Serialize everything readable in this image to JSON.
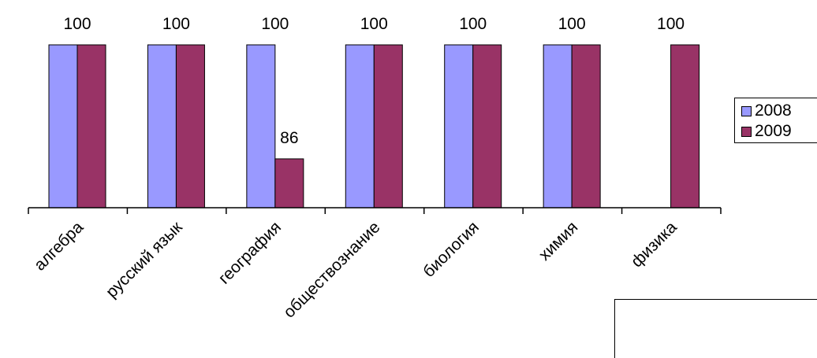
{
  "chart_data": {
    "type": "bar",
    "title": "",
    "xlabel": "",
    "ylabel": "",
    "categories": [
      "алгебра",
      "русский язык",
      "география",
      "обществознание",
      "биология",
      "химия",
      "физика"
    ],
    "series": [
      {
        "name": "2008",
        "color": "#9999ff",
        "values": [
          100,
          100,
          100,
          100,
          100,
          100,
          null
        ]
      },
      {
        "name": "2009",
        "color": "#993366",
        "values": [
          100,
          100,
          86,
          100,
          100,
          100,
          100
        ]
      }
    ],
    "ylim": [
      80,
      100
    ],
    "grid": false,
    "legend_position": "right",
    "data_labels": [
      {
        "category": 0,
        "text": "100"
      },
      {
        "category": 1,
        "text": "100"
      },
      {
        "category": 2,
        "text": "100"
      },
      {
        "category": 2,
        "series": 1,
        "text": "86"
      },
      {
        "category": 3,
        "text": "100"
      },
      {
        "category": 4,
        "text": "100"
      },
      {
        "category": 5,
        "text": "100"
      },
      {
        "category": 6,
        "text": "100"
      }
    ]
  }
}
